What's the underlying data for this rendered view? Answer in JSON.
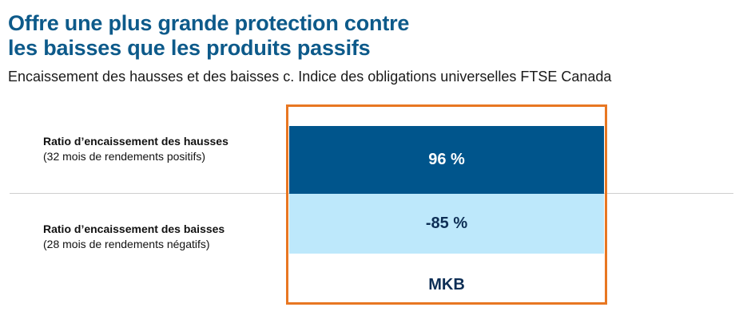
{
  "header": {
    "title_line1": "Offre une plus grande protection contre",
    "title_line2": "les baisses que les produits passifs",
    "subtitle": "Encaissement des hausses et des baisses c. Indice des obligations universelles FTSE Canada"
  },
  "rows": [
    {
      "label": "Ratio d’encaissement des hausses",
      "note": "(32 mois de rendements positifs)"
    },
    {
      "label": "Ratio d’encaissement des baisses",
      "note": "(28 mois de rendements négatifs)"
    }
  ],
  "chart_data": {
    "type": "table",
    "title": "Offre une plus grande protection contre les baisses que les produits passifs",
    "subtitle": "Encaissement des hausses et des baisses c. Indice des obligations universelles FTSE Canada",
    "categories": [
      "Ratio d’encaissement des hausses",
      "Ratio d’encaissement des baisses"
    ],
    "series": [
      {
        "name": "MKB",
        "values": [
          96,
          -85
        ],
        "display": [
          "96 %",
          "-85 %"
        ]
      }
    ],
    "colors": {
      "upside": "#00558c",
      "downside": "#bde8fb",
      "highlight_border": "#e87722",
      "title": "#0d5a8a"
    }
  }
}
